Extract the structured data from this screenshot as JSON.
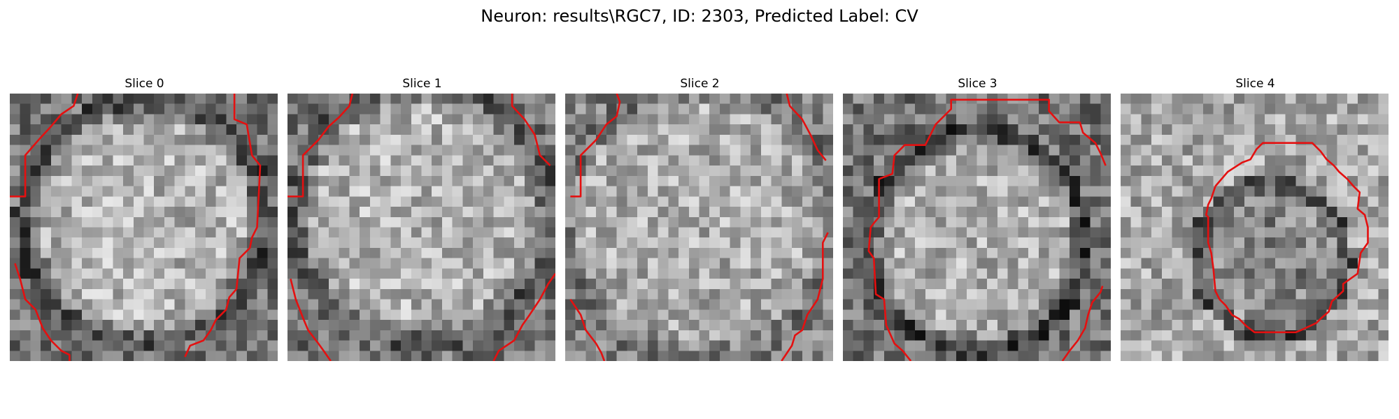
{
  "figure": {
    "title": "Neuron: results\\RGC7, ID: 2303, Predicted Label: CV"
  },
  "slices": [
    {
      "title": "Slice 0"
    },
    {
      "title": "Slice 1"
    },
    {
      "title": "Slice 2"
    },
    {
      "title": "Slice 3"
    },
    {
      "title": "Slice 4"
    }
  ],
  "colors": {
    "contour": "#e41010",
    "background": "#ffffff"
  }
}
